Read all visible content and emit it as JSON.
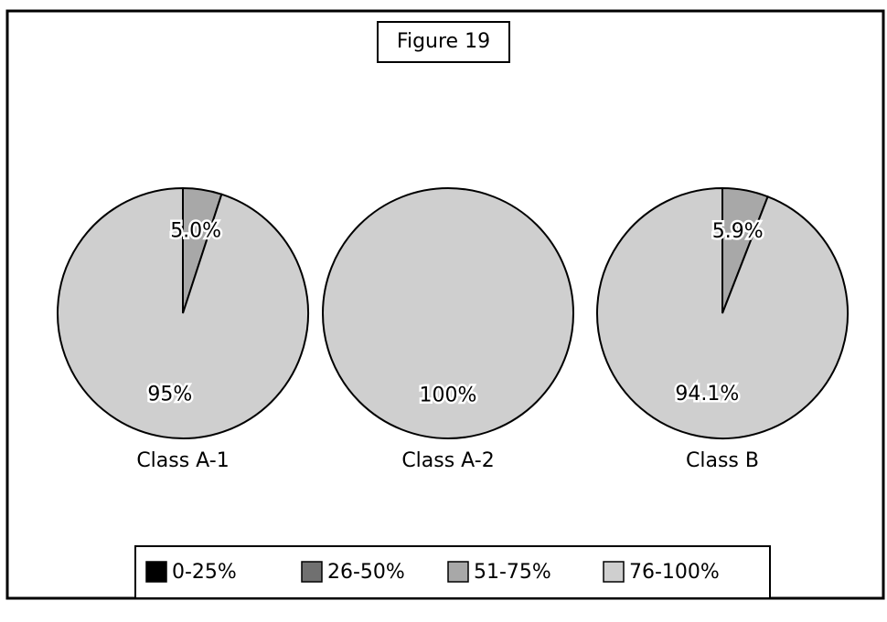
{
  "chart_data": {
    "type": "pie",
    "title": "Figure 19",
    "categories": [
      "Class A-1",
      "Class A-2",
      "Class B"
    ],
    "series": [
      {
        "name": "0-25%",
        "color": "#000000",
        "values": [
          0,
          0,
          0
        ],
        "value_labels": [
          null,
          null,
          null
        ]
      },
      {
        "name": "26-50%",
        "color": "#707070",
        "values": [
          0,
          0,
          0
        ],
        "value_labels": [
          null,
          null,
          null
        ]
      },
      {
        "name": "51-75%",
        "color": "#a8a8a8",
        "values": [
          5.0,
          0,
          5.9
        ],
        "value_labels": [
          "5.0%",
          null,
          "5.9%"
        ]
      },
      {
        "name": "76-100%",
        "color": "#cfcfcf",
        "values": [
          95,
          100,
          94.1
        ],
        "value_labels": [
          "95%",
          "100%",
          "94.1%"
        ]
      }
    ]
  }
}
